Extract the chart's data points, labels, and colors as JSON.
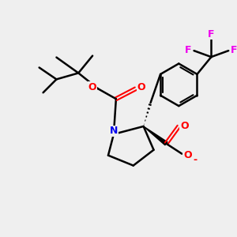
{
  "background_color": "#efefef",
  "atom_colors": {
    "N": "#0000ee",
    "O": "#ff0000",
    "F": "#ee00ee",
    "C": "#000000"
  },
  "title": ""
}
